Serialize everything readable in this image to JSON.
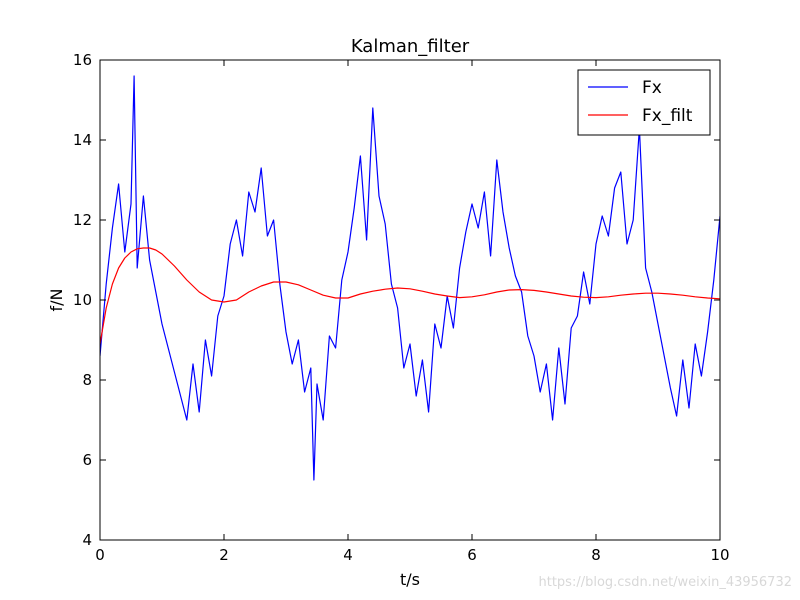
{
  "chart_data": {
    "type": "line",
    "title": "Kalman_filter",
    "xlabel": "t/s",
    "ylabel": "f/N",
    "xlim": [
      0,
      10
    ],
    "ylim": [
      4,
      16
    ],
    "xticks": [
      0,
      2,
      4,
      6,
      8,
      10
    ],
    "yticks": [
      4,
      6,
      8,
      10,
      12,
      14,
      16
    ],
    "legend_position": "top-right",
    "grid": false,
    "series": [
      {
        "name": "Fx",
        "color": "#0000ff",
        "x": [
          0,
          0.1,
          0.2,
          0.3,
          0.4,
          0.5,
          0.55,
          0.6,
          0.7,
          0.8,
          0.9,
          1.0,
          1.1,
          1.2,
          1.3,
          1.4,
          1.5,
          1.6,
          1.7,
          1.8,
          1.9,
          2.0,
          2.1,
          2.2,
          2.3,
          2.4,
          2.5,
          2.6,
          2.7,
          2.8,
          2.9,
          3.0,
          3.1,
          3.2,
          3.3,
          3.4,
          3.45,
          3.5,
          3.6,
          3.7,
          3.8,
          3.9,
          4.0,
          4.1,
          4.2,
          4.3,
          4.4,
          4.5,
          4.6,
          4.7,
          4.8,
          4.9,
          5.0,
          5.1,
          5.2,
          5.3,
          5.4,
          5.5,
          5.6,
          5.7,
          5.8,
          5.9,
          6.0,
          6.1,
          6.2,
          6.3,
          6.4,
          6.5,
          6.6,
          6.7,
          6.8,
          6.9,
          7.0,
          7.1,
          7.2,
          7.3,
          7.4,
          7.5,
          7.6,
          7.7,
          7.8,
          7.9,
          8.0,
          8.1,
          8.2,
          8.3,
          8.4,
          8.5,
          8.6,
          8.7,
          8.8,
          8.9,
          9.0,
          9.1,
          9.2,
          9.3,
          9.4,
          9.5,
          9.6,
          9.7,
          9.8,
          9.9,
          10.0
        ],
        "values": [
          8.6,
          10.4,
          11.8,
          12.9,
          11.2,
          12.4,
          15.6,
          10.8,
          12.6,
          11.0,
          10.2,
          9.4,
          8.8,
          8.2,
          7.6,
          7.0,
          8.4,
          7.2,
          9.0,
          8.1,
          9.6,
          10.1,
          11.4,
          12.0,
          11.1,
          12.7,
          12.2,
          13.3,
          11.6,
          12.0,
          10.4,
          9.2,
          8.4,
          9.0,
          7.7,
          8.3,
          5.5,
          7.9,
          7.0,
          9.1,
          8.8,
          10.5,
          11.2,
          12.3,
          13.6,
          11.5,
          14.8,
          12.6,
          11.9,
          10.4,
          9.8,
          8.3,
          8.9,
          7.6,
          8.5,
          7.2,
          9.4,
          8.8,
          10.1,
          9.3,
          10.8,
          11.7,
          12.4,
          11.8,
          12.7,
          11.1,
          13.5,
          12.2,
          11.3,
          10.6,
          10.2,
          9.1,
          8.6,
          7.7,
          8.4,
          7.0,
          8.8,
          7.4,
          9.3,
          9.6,
          10.7,
          9.9,
          11.4,
          12.1,
          11.6,
          12.8,
          13.2,
          11.4,
          12.0,
          14.3,
          10.8,
          10.2,
          9.4,
          8.6,
          7.8,
          7.1,
          8.5,
          7.3,
          8.9,
          8.1,
          9.2,
          10.5,
          12.1
        ]
      },
      {
        "name": "Fx_filt",
        "color": "#ff0000",
        "x": [
          0,
          0.1,
          0.2,
          0.3,
          0.4,
          0.5,
          0.6,
          0.7,
          0.8,
          0.9,
          1.0,
          1.2,
          1.4,
          1.6,
          1.8,
          2.0,
          2.2,
          2.4,
          2.6,
          2.8,
          3.0,
          3.2,
          3.4,
          3.6,
          3.8,
          4.0,
          4.2,
          4.4,
          4.6,
          4.8,
          5.0,
          5.2,
          5.4,
          5.6,
          5.8,
          6.0,
          6.2,
          6.4,
          6.6,
          6.8,
          7.0,
          7.2,
          7.4,
          7.6,
          7.8,
          8.0,
          8.2,
          8.4,
          8.6,
          8.8,
          9.0,
          9.2,
          9.4,
          9.6,
          9.8,
          10.0
        ],
        "values": [
          8.9,
          9.8,
          10.4,
          10.8,
          11.05,
          11.2,
          11.28,
          11.3,
          11.3,
          11.25,
          11.15,
          10.85,
          10.5,
          10.2,
          10.0,
          9.95,
          10.0,
          10.2,
          10.35,
          10.45,
          10.45,
          10.38,
          10.25,
          10.12,
          10.05,
          10.05,
          10.15,
          10.22,
          10.27,
          10.3,
          10.28,
          10.22,
          10.15,
          10.1,
          10.06,
          10.08,
          10.13,
          10.2,
          10.25,
          10.26,
          10.24,
          10.2,
          10.15,
          10.1,
          10.07,
          10.06,
          10.08,
          10.12,
          10.15,
          10.17,
          10.17,
          10.15,
          10.12,
          10.08,
          10.05,
          10.03
        ]
      }
    ]
  },
  "watermark": "https://blog.csdn.net/weixin_43956732"
}
